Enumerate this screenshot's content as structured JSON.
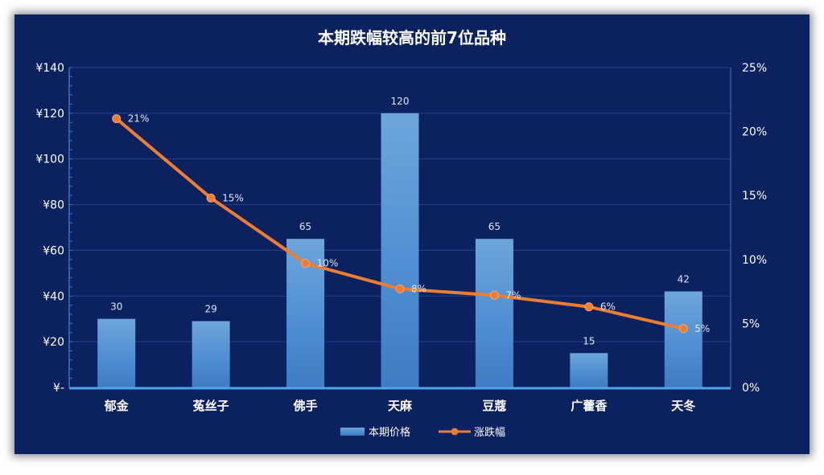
{
  "chart_data": {
    "type": "bar",
    "title": "本期跌幅较高的前7位品种",
    "categories": [
      "郁金",
      "菟丝子",
      "佛手",
      "天麻",
      "豆蔻",
      "广藿香",
      "天冬"
    ],
    "series": [
      {
        "name": "本期价格",
        "type": "bar",
        "axis": "left",
        "values": [
          30,
          29,
          65,
          120,
          65,
          15,
          42
        ],
        "labels": [
          "30",
          "29",
          "65",
          "120",
          "65",
          "15",
          "42"
        ],
        "color": "#5b9bd5"
      },
      {
        "name": "涨跌幅",
        "type": "line",
        "axis": "right",
        "values": [
          21,
          14.8,
          9.7,
          7.7,
          7.2,
          6.3,
          4.6
        ],
        "labels": [
          "21%",
          "15%",
          "10%",
          "8%",
          "7%",
          "6%",
          "5%"
        ],
        "color": "#ed7d31"
      }
    ],
    "y_left": {
      "ylim": [
        0,
        140
      ],
      "ticks": [
        0,
        20,
        40,
        60,
        80,
        100,
        120,
        140
      ],
      "tick_labels": [
        "¥-",
        "¥20",
        "¥40",
        "¥60",
        "¥80",
        "¥100",
        "¥120",
        "¥140"
      ]
    },
    "y_right": {
      "ylim": [
        0,
        25
      ],
      "ticks": [
        0,
        5,
        10,
        15,
        20,
        25
      ],
      "tick_labels": [
        "0%",
        "5%",
        "10%",
        "15%",
        "20%",
        "25%"
      ]
    },
    "grid": true,
    "legend": "bottom",
    "background": "#0c2160"
  }
}
